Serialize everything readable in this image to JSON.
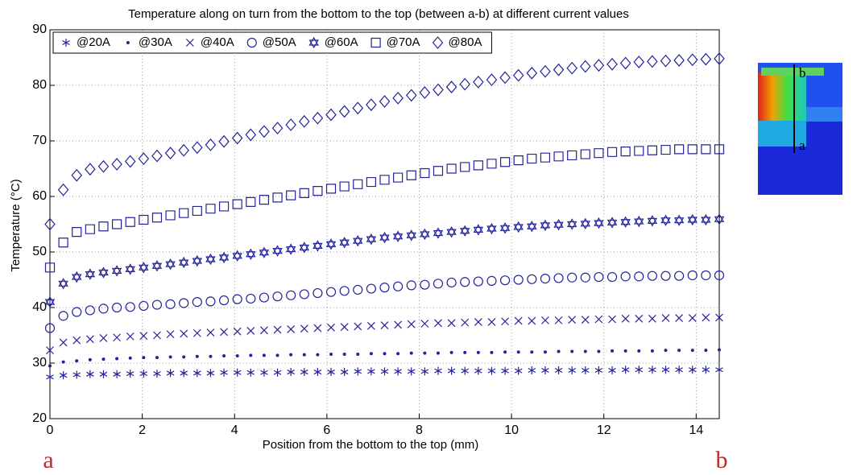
{
  "chart_data": {
    "type": "scatter",
    "title": "Temperature along on turn from the bottom to the top (between a-b) at different current values",
    "x_label": "Position from the bottom to the top (mm)",
    "y_label": "Temperature (°C)",
    "xlim": [
      0,
      14.5
    ],
    "xticks": [
      0,
      2,
      4,
      6,
      8,
      10,
      12,
      14
    ],
    "ylim": [
      20,
      90
    ],
    "yticks": [
      20,
      30,
      40,
      50,
      60,
      70,
      80,
      90
    ],
    "grid": true,
    "legend": "top",
    "x": [
      0,
      0.29,
      0.58,
      0.87,
      1.16,
      1.45,
      1.74,
      2.03,
      2.32,
      2.61,
      2.9,
      3.19,
      3.48,
      3.77,
      4.06,
      4.35,
      4.64,
      4.93,
      5.22,
      5.51,
      5.8,
      6.09,
      6.38,
      6.67,
      6.96,
      7.25,
      7.54,
      7.83,
      8.12,
      8.41,
      8.7,
      8.99,
      9.28,
      9.57,
      9.86,
      10.15,
      10.44,
      10.73,
      11.02,
      11.31,
      11.6,
      11.89,
      12.18,
      12.47,
      12.76,
      13.05,
      13.34,
      13.63,
      13.92,
      14.21,
      14.5
    ],
    "series": [
      {
        "name": "@20A",
        "color": "#23239b",
        "marker": "asterisk",
        "values": [
          27.5,
          27.8,
          27.9,
          28.0,
          28.0,
          28.0,
          28.1,
          28.1,
          28.1,
          28.2,
          28.2,
          28.2,
          28.2,
          28.3,
          28.3,
          28.3,
          28.3,
          28.3,
          28.4,
          28.4,
          28.4,
          28.4,
          28.4,
          28.5,
          28.5,
          28.5,
          28.5,
          28.5,
          28.5,
          28.6,
          28.6,
          28.6,
          28.6,
          28.6,
          28.6,
          28.6,
          28.7,
          28.7,
          28.7,
          28.7,
          28.7,
          28.7,
          28.7,
          28.8,
          28.8,
          28.8,
          28.8,
          28.8,
          28.8,
          28.8,
          28.8
        ]
      },
      {
        "name": "@30A",
        "color": "#23239b",
        "marker": "dot",
        "values": [
          29.5,
          30.2,
          30.4,
          30.6,
          30.7,
          30.8,
          30.9,
          31.0,
          31.0,
          31.1,
          31.1,
          31.2,
          31.2,
          31.3,
          31.3,
          31.4,
          31.4,
          31.4,
          31.5,
          31.5,
          31.5,
          31.6,
          31.6,
          31.6,
          31.7,
          31.7,
          31.7,
          31.8,
          31.8,
          31.8,
          31.9,
          31.9,
          31.9,
          31.9,
          32.0,
          32.0,
          32.0,
          32.0,
          32.1,
          32.1,
          32.1,
          32.1,
          32.2,
          32.2,
          32.2,
          32.2,
          32.3,
          32.3,
          32.3,
          32.3,
          32.4
        ]
      },
      {
        "name": "@40A",
        "color": "#23239b",
        "marker": "x",
        "values": [
          32.3,
          33.7,
          34.1,
          34.3,
          34.5,
          34.6,
          34.8,
          34.9,
          35.0,
          35.2,
          35.3,
          35.4,
          35.5,
          35.6,
          35.7,
          35.8,
          35.9,
          36.0,
          36.1,
          36.2,
          36.3,
          36.4,
          36.5,
          36.6,
          36.7,
          36.8,
          36.9,
          37.0,
          37.1,
          37.2,
          37.2,
          37.3,
          37.4,
          37.4,
          37.5,
          37.6,
          37.6,
          37.7,
          37.7,
          37.8,
          37.8,
          37.9,
          37.9,
          38.0,
          38.0,
          38.0,
          38.1,
          38.1,
          38.1,
          38.2,
          38.2
        ]
      },
      {
        "name": "@50A",
        "color": "#23239b",
        "marker": "circle",
        "values": [
          36.3,
          38.5,
          39.2,
          39.5,
          39.8,
          40.0,
          40.1,
          40.3,
          40.5,
          40.6,
          40.8,
          41.0,
          41.1,
          41.3,
          41.5,
          41.6,
          41.8,
          42.0,
          42.2,
          42.4,
          42.6,
          42.8,
          43.0,
          43.2,
          43.4,
          43.6,
          43.8,
          44.0,
          44.1,
          44.3,
          44.5,
          44.6,
          44.7,
          44.8,
          44.9,
          45.0,
          45.1,
          45.2,
          45.3,
          45.4,
          45.4,
          45.5,
          45.5,
          45.6,
          45.6,
          45.7,
          45.7,
          45.7,
          45.8,
          45.8,
          45.8
        ]
      },
      {
        "name": "@60A",
        "color": "#23239b",
        "marker": "hexagram",
        "values": [
          41.0,
          44.3,
          45.5,
          46.0,
          46.3,
          46.6,
          46.9,
          47.2,
          47.5,
          47.8,
          48.1,
          48.4,
          48.7,
          49.0,
          49.3,
          49.6,
          49.9,
          50.2,
          50.5,
          50.8,
          51.1,
          51.4,
          51.7,
          52.0,
          52.3,
          52.6,
          52.8,
          53.0,
          53.2,
          53.4,
          53.6,
          53.8,
          54.0,
          54.2,
          54.3,
          54.5,
          54.6,
          54.8,
          54.9,
          55.0,
          55.1,
          55.2,
          55.3,
          55.4,
          55.5,
          55.6,
          55.7,
          55.7,
          55.8,
          55.8,
          55.9
        ]
      },
      {
        "name": "@70A",
        "color": "#23239b",
        "marker": "square",
        "values": [
          47.2,
          51.7,
          53.6,
          54.1,
          54.6,
          55.0,
          55.4,
          55.8,
          56.2,
          56.6,
          57.0,
          57.4,
          57.8,
          58.2,
          58.6,
          59.0,
          59.4,
          59.8,
          60.2,
          60.6,
          61.0,
          61.4,
          61.8,
          62.2,
          62.6,
          63.0,
          63.4,
          63.8,
          64.2,
          64.6,
          65.0,
          65.3,
          65.6,
          65.9,
          66.2,
          66.5,
          66.8,
          67.0,
          67.2,
          67.4,
          67.6,
          67.8,
          68.0,
          68.1,
          68.2,
          68.3,
          68.4,
          68.5,
          68.5,
          68.5,
          68.5
        ]
      },
      {
        "name": "@80A",
        "color": "#23239b",
        "marker": "diamond",
        "values": [
          55.0,
          61.2,
          63.8,
          64.9,
          65.4,
          65.8,
          66.3,
          66.8,
          67.3,
          67.8,
          68.3,
          68.8,
          69.3,
          69.9,
          70.5,
          71.1,
          71.7,
          72.3,
          72.9,
          73.5,
          74.1,
          74.7,
          75.3,
          75.9,
          76.5,
          77.1,
          77.7,
          78.2,
          78.7,
          79.2,
          79.7,
          80.2,
          80.6,
          81.0,
          81.4,
          81.8,
          82.2,
          82.5,
          82.8,
          83.1,
          83.4,
          83.6,
          83.8,
          84.0,
          84.2,
          84.3,
          84.4,
          84.5,
          84.6,
          84.7,
          84.8
        ]
      }
    ]
  },
  "end_labels": [
    "a",
    "b"
  ],
  "image_labels": {
    "top": "b",
    "bottom": "a"
  }
}
